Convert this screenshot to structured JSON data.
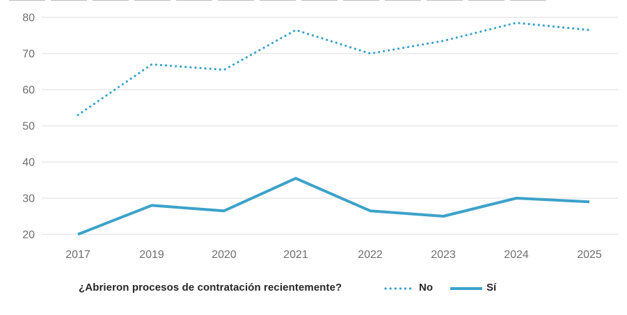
{
  "colors": {
    "series": "#3BA2C9",
    "gridline": "#DCDCDC",
    "axis_label": "#6E6E6E",
    "legend_text": "#262626",
    "top_remnant": "#ADADAD"
  },
  "chart_data": {
    "type": "line",
    "title": "",
    "xlabel": "",
    "ylabel": "",
    "categories": [
      "2017",
      "2019",
      "2020",
      "2021",
      "2022",
      "2023",
      "2024",
      "2025"
    ],
    "series": [
      {
        "name": "No",
        "style": "dotted",
        "values": [
          53,
          67,
          65.5,
          76.5,
          70,
          73.5,
          78.5,
          76.5
        ]
      },
      {
        "name": "Sí",
        "style": "solid",
        "values": [
          20,
          28,
          26.5,
          35.5,
          26.5,
          25,
          30,
          29
        ]
      }
    ],
    "yticks": [
      20,
      30,
      40,
      50,
      60,
      70,
      80
    ],
    "ylim": [
      17,
      82
    ],
    "grid": "horizontal",
    "legend_position": "bottom"
  },
  "legend": {
    "question": "¿Abrieron procesos de contratación recientemente?"
  }
}
